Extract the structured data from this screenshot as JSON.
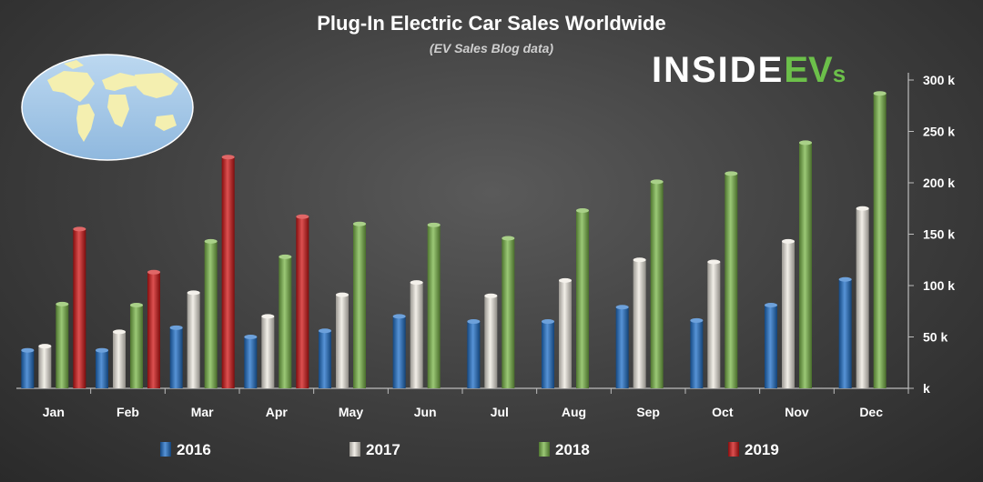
{
  "chart_data": {
    "type": "bar",
    "title": "Plug-In Electric Car Sales Worldwide",
    "subtitle": "(EV Sales Blog data)",
    "categories": [
      "Jan",
      "Feb",
      "Mar",
      "Apr",
      "May",
      "Jun",
      "Jul",
      "Aug",
      "Sep",
      "Oct",
      "Nov",
      "Dec"
    ],
    "series": [
      {
        "name": "2016",
        "color": "#1f6fc8",
        "values": [
          37,
          37,
          59,
          50,
          56,
          70,
          65,
          65,
          79,
          66,
          81,
          106
        ]
      },
      {
        "name": "2017",
        "color": "#eeeae0",
        "values": [
          41,
          55,
          93,
          70,
          91,
          103,
          90,
          105,
          125,
          123,
          143,
          175
        ]
      },
      {
        "name": "2018",
        "color": "#7ab648",
        "values": [
          82,
          81,
          143,
          128,
          160,
          159,
          146,
          173,
          201,
          209,
          239,
          287
        ]
      },
      {
        "name": "2019",
        "color": "#d01515",
        "values": [
          155,
          113,
          225,
          167,
          null,
          null,
          null,
          null,
          null,
          null,
          null,
          null
        ]
      }
    ],
    "ylim": [
      0,
      300
    ],
    "y_ticks": [
      0,
      50,
      100,
      150,
      200,
      250,
      300
    ],
    "y_tick_labels": [
      "k",
      "50 k",
      "100 k",
      "150 k",
      "200 k",
      "250 k",
      "300 k"
    ],
    "y_axis_position": "right",
    "xlabel": "",
    "ylabel": "",
    "grid": false,
    "legend_position": "bottom"
  },
  "brand": {
    "name_part1": "INSIDE",
    "name_part2": "EV",
    "name_part3": "s",
    "icon": "world-map-icon"
  }
}
